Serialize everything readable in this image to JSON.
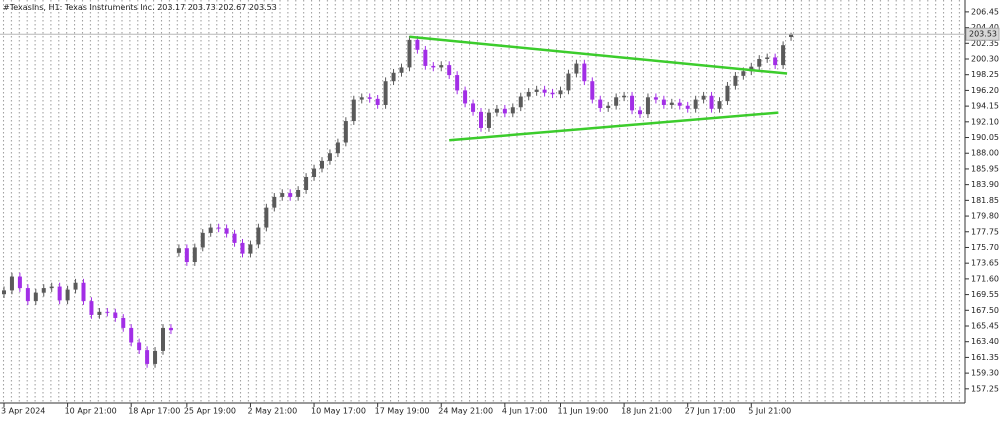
{
  "header": {
    "symbol": "#TexasIns, H1:",
    "instrument": "Texas Instruments Inc."
  },
  "chart_data": {
    "type": "candlestick",
    "categories": [
      "3 Apr 2024",
      null,
      null,
      null,
      null,
      null,
      null,
      null,
      "10 Apr 21:00",
      null,
      null,
      null,
      null,
      null,
      null,
      null,
      "18 Apr 17:00",
      null,
      null,
      null,
      null,
      null,
      null,
      "25 Apr 19:00",
      null,
      null,
      null,
      null,
      null,
      null,
      null,
      "2 May 21:00",
      null,
      null,
      null,
      null,
      null,
      null,
      null,
      "10 May 17:00",
      null,
      null,
      null,
      null,
      null,
      null,
      null,
      "17 May 19:00",
      null,
      null,
      null,
      null,
      null,
      null,
      null,
      "24 May 21:00",
      null,
      null,
      null,
      null,
      null,
      null,
      null,
      "4 Jun 17:00",
      null,
      null,
      null,
      null,
      null,
      null,
      "11 Jun 19:00",
      null,
      null,
      null,
      null,
      null,
      null,
      null,
      "18 Jun 21:00",
      null,
      null,
      null,
      null,
      null,
      null,
      null,
      "27 Jun 17:00",
      null,
      null,
      null,
      null,
      null,
      null,
      null,
      "5 Jul 21:00",
      null,
      null,
      null,
      null,
      null
    ],
    "open": [
      169.6,
      170.1,
      171.9,
      170.4,
      168.7,
      169.8,
      170.4,
      170.6,
      168.8,
      170.2,
      171.1,
      168.7,
      166.9,
      167.3,
      167.2,
      166.5,
      165.2,
      163.3,
      162.3,
      160.5,
      162.2,
      165.2,
      175.0,
      175.6,
      173.8,
      175.7,
      177.6,
      178.3,
      178.2,
      177.5,
      176.3,
      174.9,
      176.1,
      178.3,
      180.9,
      182.3,
      182.8,
      182.3,
      183.2,
      184.9,
      186.0,
      187.0,
      188.0,
      189.4,
      192.2,
      195.0,
      195.3,
      195.1,
      194.3,
      197.4,
      198.5,
      199.2,
      202.8,
      201.5,
      199.4,
      199.2,
      199.5,
      198.2,
      196.2,
      194.5,
      193.4,
      191.3,
      193.3,
      193.8,
      193.2,
      194.0,
      195.4,
      196.0,
      196.3,
      195.9,
      195.7,
      196.2,
      198.4,
      199.7,
      197.4,
      195.0,
      193.9,
      194.2,
      195.3,
      195.5,
      193.6,
      193.1,
      195.3,
      195.0,
      194.3,
      194.6,
      194.2,
      193.8,
      195.0,
      195.5,
      193.8,
      194.8,
      196.8,
      198.1,
      198.7,
      199.3,
      200.3,
      200.5,
      199.5,
      203.17
    ],
    "high": [
      170.6,
      172.4,
      172.4,
      170.9,
      170.3,
      170.9,
      171.1,
      171.1,
      170.7,
      171.6,
      171.6,
      169.2,
      167.8,
      167.8,
      167.7,
      167.0,
      165.7,
      163.8,
      162.8,
      162.7,
      165.7,
      165.7,
      176.1,
      176.1,
      176.2,
      178.1,
      178.8,
      178.8,
      178.7,
      178.0,
      176.8,
      176.6,
      178.8,
      181.4,
      182.8,
      183.3,
      183.3,
      183.7,
      185.4,
      186.5,
      187.5,
      188.5,
      189.9,
      192.7,
      195.5,
      195.8,
      195.8,
      195.6,
      197.9,
      199.0,
      199.7,
      203.3,
      203.3,
      202.0,
      199.9,
      200.0,
      200.0,
      198.7,
      196.7,
      195.0,
      193.9,
      193.8,
      194.3,
      194.3,
      194.5,
      195.9,
      196.5,
      196.8,
      196.8,
      196.4,
      196.7,
      198.9,
      200.2,
      200.2,
      197.9,
      195.5,
      194.7,
      195.8,
      196.0,
      196.0,
      194.1,
      195.8,
      195.8,
      195.5,
      195.1,
      195.1,
      194.7,
      195.5,
      196.0,
      196.0,
      195.3,
      197.3,
      198.6,
      199.2,
      199.8,
      200.8,
      201.0,
      201.0,
      202.6,
      203.73
    ],
    "low": [
      169.1,
      169.6,
      169.9,
      168.2,
      168.2,
      169.3,
      169.9,
      168.3,
      168.3,
      169.7,
      168.2,
      166.4,
      166.4,
      166.7,
      166.0,
      164.7,
      162.8,
      161.8,
      160.0,
      160.0,
      161.7,
      164.4,
      174.5,
      173.3,
      173.3,
      175.2,
      177.1,
      177.7,
      177.0,
      175.8,
      174.4,
      174.4,
      175.6,
      177.8,
      180.4,
      181.8,
      181.8,
      181.8,
      182.7,
      184.4,
      185.5,
      186.5,
      187.5,
      188.9,
      191.7,
      194.5,
      194.6,
      193.8,
      193.8,
      196.9,
      198.0,
      198.7,
      201.0,
      198.9,
      198.7,
      198.7,
      197.7,
      195.7,
      194.0,
      192.9,
      190.8,
      190.8,
      192.8,
      192.7,
      192.7,
      193.5,
      194.9,
      195.5,
      195.4,
      195.2,
      195.2,
      195.7,
      197.9,
      196.9,
      194.5,
      193.4,
      193.4,
      193.7,
      194.8,
      193.1,
      192.6,
      192.6,
      194.5,
      193.8,
      193.8,
      193.7,
      193.3,
      193.3,
      194.5,
      193.3,
      193.3,
      194.3,
      196.3,
      197.6,
      198.2,
      198.8,
      199.8,
      199.0,
      199.0,
      202.67
    ],
    "close": [
      170.1,
      171.9,
      170.4,
      168.7,
      169.8,
      170.4,
      170.6,
      168.8,
      170.2,
      171.1,
      168.7,
      166.9,
      167.3,
      167.2,
      166.5,
      165.2,
      163.3,
      162.3,
      160.5,
      162.2,
      165.2,
      164.9,
      175.6,
      173.8,
      175.7,
      177.6,
      178.3,
      178.2,
      177.5,
      176.3,
      174.9,
      176.1,
      178.3,
      180.9,
      182.3,
      182.8,
      182.3,
      183.2,
      184.9,
      186.0,
      187.0,
      188.0,
      189.4,
      192.2,
      195.0,
      195.3,
      195.1,
      194.3,
      197.4,
      198.5,
      199.2,
      202.8,
      201.5,
      199.4,
      199.2,
      199.5,
      198.2,
      196.2,
      194.5,
      193.4,
      191.3,
      193.3,
      193.8,
      193.2,
      194.0,
      195.4,
      196.0,
      196.3,
      195.9,
      195.7,
      196.2,
      198.4,
      199.7,
      197.4,
      195.0,
      193.9,
      194.2,
      195.3,
      195.5,
      193.6,
      193.1,
      195.3,
      195.0,
      194.3,
      194.6,
      194.2,
      193.8,
      195.0,
      195.5,
      193.8,
      194.8,
      196.8,
      198.1,
      198.7,
      199.3,
      200.3,
      200.5,
      199.5,
      202.1,
      203.53
    ],
    "up_color": "#5a5a5a",
    "down_color": "#a22ee6",
    "ylim": [
      155.4,
      208.0
    ],
    "yticks": [
      206.45,
      {
        "value": 204.4,
        "label": "204.40"
      },
      202.35,
      {
        "value": 200.3,
        "label": "200.30"
      },
      198.25,
      {
        "value": 196.2,
        "label": "196.20"
      },
      194.15,
      {
        "value": 192.1,
        "label": "192.10"
      },
      190.05,
      {
        "value": 188,
        "label": "188.00"
      },
      185.95,
      {
        "value": 183.9,
        "label": "183.90"
      },
      181.85,
      {
        "value": 179.8,
        "label": "179.80"
      },
      177.75,
      {
        "value": 175.7,
        "label": "175.70"
      },
      173.65,
      {
        "value": 171.6,
        "label": "171.60"
      },
      169.55,
      {
        "value": 167.5,
        "label": "167.50"
      },
      165.45,
      {
        "value": 163.4,
        "label": "163.40"
      },
      161.35,
      {
        "value": 159.3,
        "label": "159.30"
      },
      157.25
    ],
    "last_price": 203.53,
    "trendlines": [
      {
        "color": "#3ccc2c",
        "x": [
          51,
          98.5
        ],
        "y": [
          203.2,
          198.4
        ]
      },
      {
        "color": "#3ccc2c",
        "x": [
          56,
          97.4
        ],
        "y": [
          189.7,
          193.3
        ]
      }
    ]
  }
}
